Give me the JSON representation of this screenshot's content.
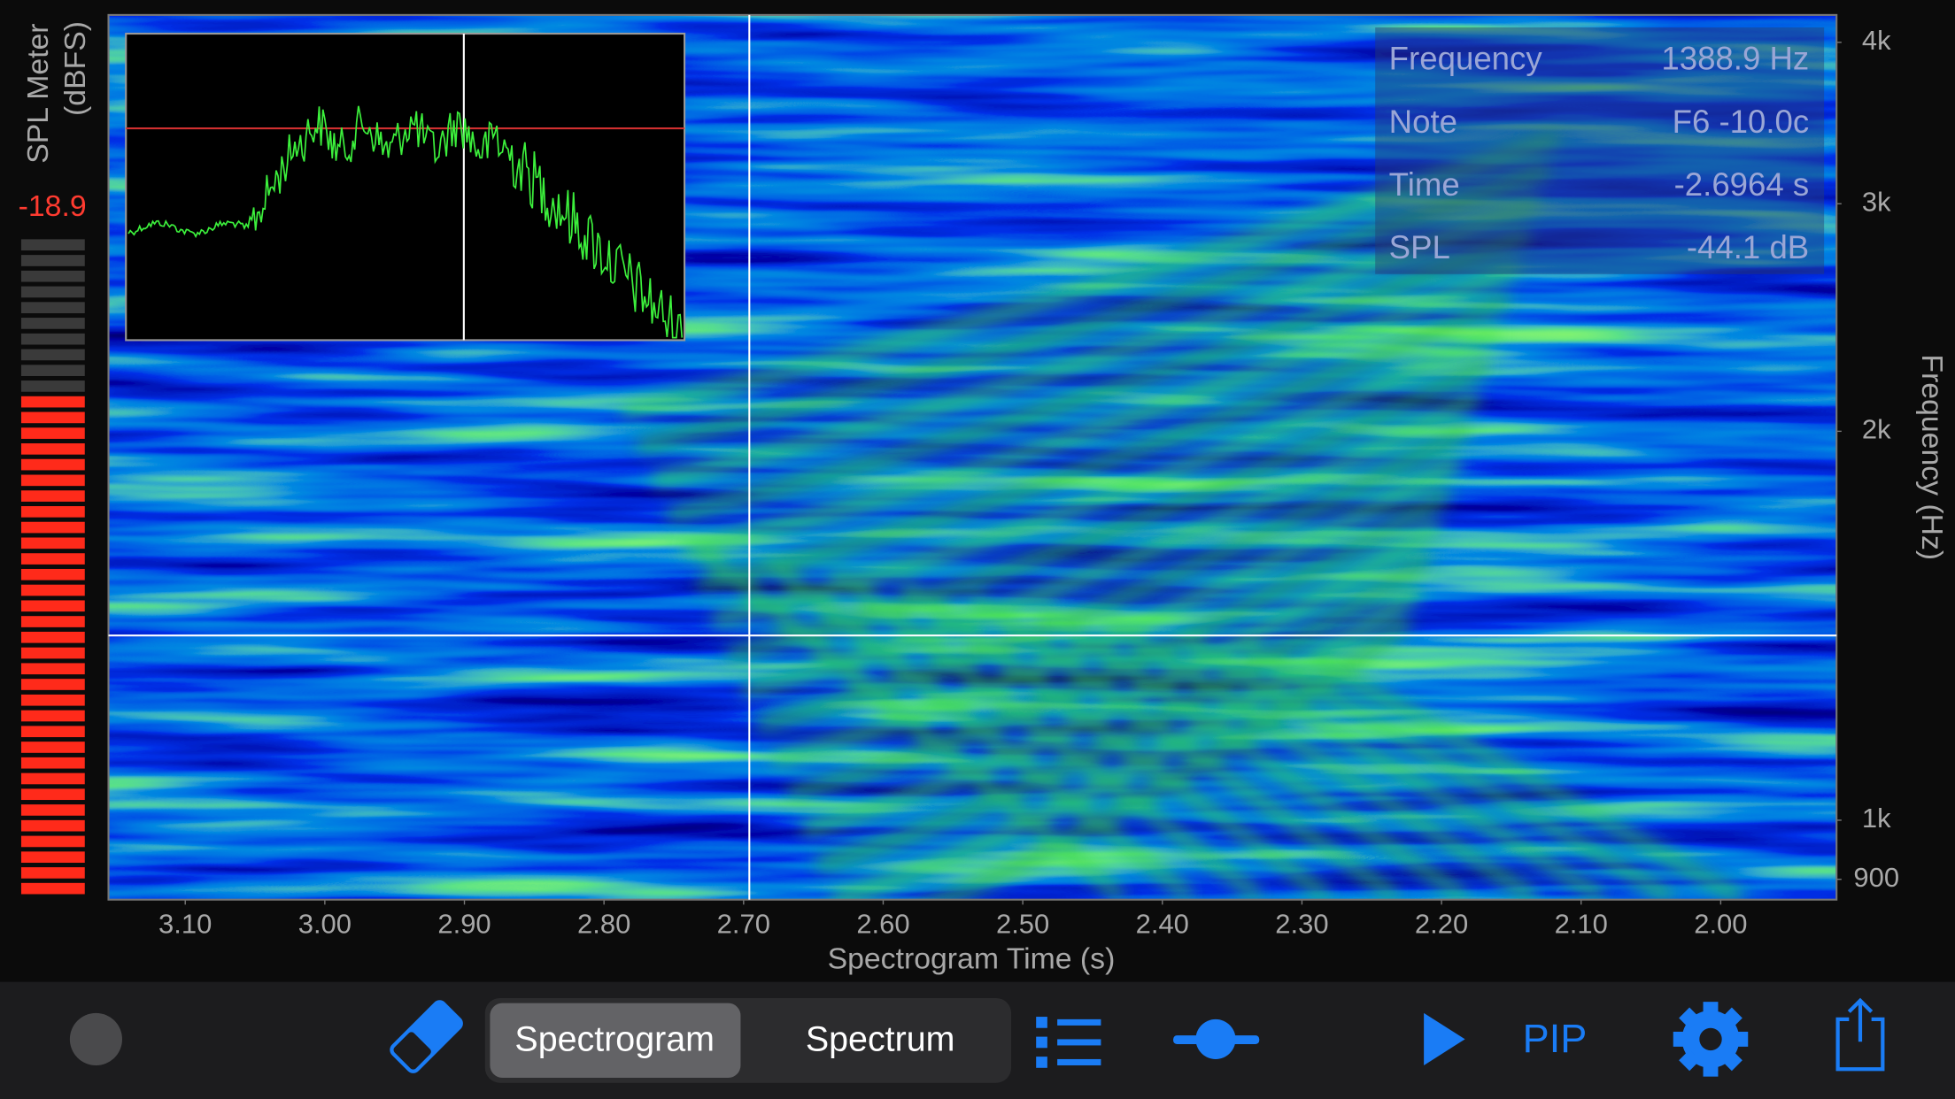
{
  "spl_meter": {
    "label_lines": [
      "SPL Meter",
      "(dBFS)"
    ],
    "value": -18.9
  },
  "chart_data": {
    "type": "spectrogram",
    "xlabel": "Spectrogram Time (s)",
    "ylabel": "Frequency (Hz)",
    "xlim": [
      3.155,
      1.917
    ],
    "ylim": [
      868,
      4200
    ],
    "yscale": "log",
    "xticks": [
      {
        "value": 3.1,
        "label": "3.10"
      },
      {
        "value": 3.0,
        "label": "3.00"
      },
      {
        "value": 2.9,
        "label": "2.90"
      },
      {
        "value": 2.8,
        "label": "2.80"
      },
      {
        "value": 2.7,
        "label": "2.70"
      },
      {
        "value": 2.6,
        "label": "2.60"
      },
      {
        "value": 2.5,
        "label": "2.50"
      },
      {
        "value": 2.4,
        "label": "2.40"
      },
      {
        "value": 2.3,
        "label": "2.30"
      },
      {
        "value": 2.2,
        "label": "2.20"
      },
      {
        "value": 2.1,
        "label": "2.10"
      },
      {
        "value": 2.0,
        "label": "2.00"
      }
    ],
    "yticks": [
      900,
      {
        "value": 1000,
        "label": "1k"
      },
      {
        "value": 2000,
        "label": "2k"
      },
      {
        "value": 3000,
        "label": "3k"
      },
      {
        "value": 4000,
        "label": "4k"
      }
    ]
  },
  "readout": {
    "rows": [
      [
        "Frequency",
        "1388.9 Hz"
      ],
      [
        "Note",
        "F6 -10.0c"
      ],
      [
        "Time",
        "-2.6964 s"
      ],
      [
        "SPL",
        "-44.1 dB"
      ]
    ]
  },
  "toolbar": {
    "segments": [
      "Spectrogram",
      "Spectrum"
    ],
    "selected": 0,
    "pip": "PIP"
  }
}
